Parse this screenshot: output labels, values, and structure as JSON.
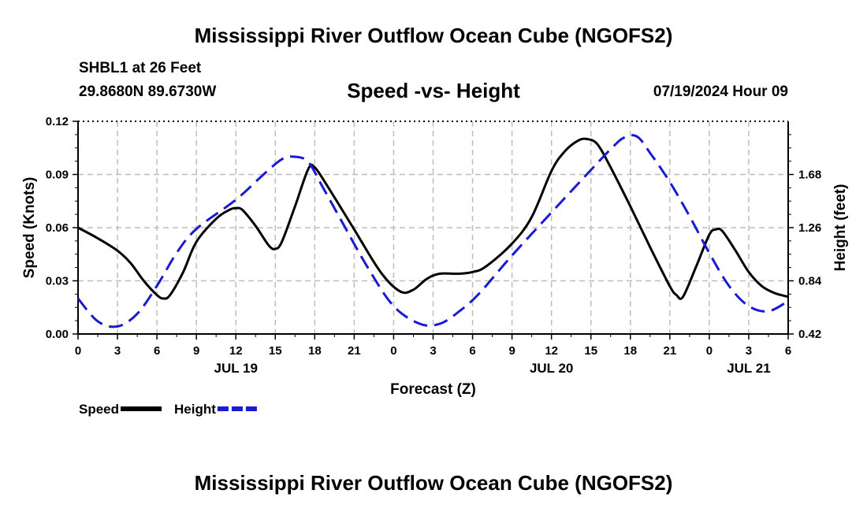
{
  "header": {
    "title": "Mississippi River Outflow Ocean Cube (NGOFS2)",
    "station": "SHBL1 at 26 Feet",
    "coords": "29.8680N  89.6730W",
    "subtitle": "Speed -vs- Height",
    "run_time": "07/19/2024 Hour 09"
  },
  "footer": {
    "title": "Mississippi River Outflow Ocean Cube (NGOFS2)"
  },
  "chart_data": {
    "type": "line",
    "title": "Speed -vs- Height",
    "xlabel": "Forecast (Z)",
    "ylabel": "Speed (Knots)",
    "y2label": "Height (feet)",
    "xlim": [
      0,
      54
    ],
    "ylim": [
      0,
      0.12
    ],
    "y2lim": [
      0.42,
      2.1
    ],
    "grid": true,
    "x_ticks": [
      0,
      3,
      6,
      9,
      12,
      15,
      18,
      21,
      24,
      27,
      30,
      33,
      36,
      39,
      42,
      45,
      48,
      51,
      54
    ],
    "x_tick_labels": [
      "0",
      "3",
      "6",
      "9",
      "12",
      "15",
      "18",
      "21",
      "0",
      "3",
      "6",
      "9",
      "12",
      "15",
      "18",
      "21",
      "0",
      "3",
      "6"
    ],
    "y_ticks": [
      0,
      0.03,
      0.06,
      0.09,
      0.12
    ],
    "y_tick_labels": [
      "0.00",
      "0.03",
      "0.06",
      "0.09",
      "0.12"
    ],
    "y2_ticks": [
      0.42,
      0.84,
      1.26,
      1.68
    ],
    "y2_tick_labels": [
      "0.42",
      "0.84",
      "1.26",
      "1.68"
    ],
    "date_labels": [
      {
        "x": 12,
        "label": "JUL 19"
      },
      {
        "x": 36,
        "label": "JUL 20"
      },
      {
        "x": 51,
        "label": "JUL 21"
      }
    ],
    "series": [
      {
        "name": "Speed",
        "axis": "left",
        "color": "#000000",
        "dash": "solid",
        "x": [
          0,
          1.5,
          3,
          4,
          5,
          6,
          6.5,
          7,
          8,
          9,
          10.5,
          11.5,
          12,
          12.5,
          13.5,
          14.5,
          15,
          15.5,
          16.5,
          17.5,
          18,
          19,
          21,
          23,
          24.5,
          25.5,
          26.5,
          27.5,
          29,
          30,
          31,
          33,
          34.5,
          36,
          37,
          38,
          38.7,
          39.5,
          40.5,
          42,
          43.5,
          45,
          45.5,
          46,
          47,
          48,
          48.5,
          49,
          50,
          51,
          52,
          53,
          54
        ],
        "values": [
          0.06,
          0.054,
          0.047,
          0.04,
          0.03,
          0.022,
          0.02,
          0.022,
          0.035,
          0.052,
          0.065,
          0.07,
          0.071,
          0.07,
          0.061,
          0.05,
          0.048,
          0.052,
          0.072,
          0.093,
          0.094,
          0.083,
          0.059,
          0.035,
          0.024,
          0.025,
          0.031,
          0.034,
          0.034,
          0.035,
          0.038,
          0.051,
          0.066,
          0.092,
          0.103,
          0.109,
          0.11,
          0.107,
          0.094,
          0.072,
          0.049,
          0.027,
          0.022,
          0.021,
          0.038,
          0.056,
          0.059,
          0.058,
          0.047,
          0.035,
          0.027,
          0.023,
          0.021
        ]
      },
      {
        "name": "Height",
        "axis": "right",
        "color": "#1a1ad2",
        "dash": "dashed",
        "x": [
          0,
          1.5,
          3,
          4.5,
          6,
          7.5,
          9,
          12,
          14,
          15.5,
          16.5,
          17.5,
          18.5,
          20,
          22,
          24,
          26,
          27.5,
          29,
          30.5,
          33,
          36,
          38.5,
          40.5,
          41.5,
          42.5,
          43.5,
          45,
          46.5,
          48,
          49.5,
          51,
          52.5,
          54
        ],
        "values": [
          0.7,
          0.52,
          0.48,
          0.58,
          0.8,
          1.06,
          1.25,
          1.48,
          1.67,
          1.8,
          1.82,
          1.78,
          1.6,
          1.32,
          0.95,
          0.64,
          0.5,
          0.5,
          0.6,
          0.74,
          1.04,
          1.38,
          1.66,
          1.88,
          1.97,
          1.98,
          1.85,
          1.62,
          1.35,
          1.06,
          0.8,
          0.64,
          0.6,
          0.68
        ]
      }
    ],
    "legend": [
      {
        "label": "Speed",
        "color": "#000000",
        "dash": "solid"
      },
      {
        "label": "Height",
        "color": "#1a1ad2",
        "dash": "dashed"
      }
    ],
    "legend_position": "bottom-left"
  }
}
